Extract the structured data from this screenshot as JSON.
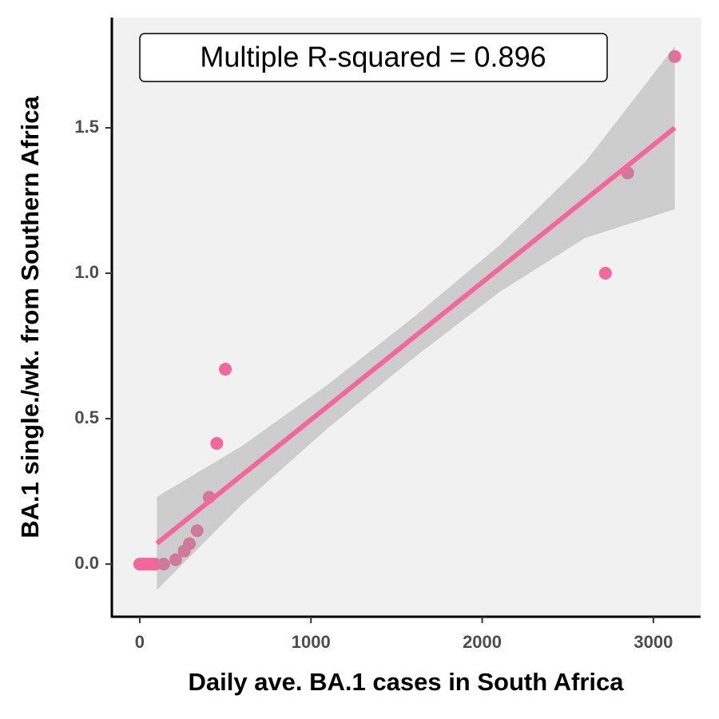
{
  "chart_data": {
    "type": "scatter",
    "x_label": "Daily ave. BA.1 cases in South Africa",
    "y_label": "BA.1 single./wk. from Southern Africa",
    "annotation": "Multiple R-squared = 0.896",
    "color": "#f4679d",
    "x": [
      0,
      15,
      30,
      50,
      70,
      90,
      140,
      210,
      260,
      290,
      335,
      405,
      450,
      500,
      2720,
      2850,
      3125
    ],
    "values": [
      0,
      0,
      0,
      0,
      0,
      0,
      0,
      0.015,
      0.045,
      0.07,
      0.115,
      0.23,
      0.415,
      0.67,
      1.0,
      1.345,
      1.745
    ],
    "fit": {
      "x": [
        100,
        3125
      ],
      "values": [
        0.071,
        1.5
      ]
    },
    "band": {
      "x": [
        100,
        600,
        1100,
        1600,
        2100,
        2600,
        3125
      ],
      "lower": [
        -0.089,
        0.207,
        0.468,
        0.709,
        0.935,
        1.121,
        1.22
      ],
      "upper": [
        0.231,
        0.407,
        0.618,
        0.849,
        1.095,
        1.381,
        1.78
      ]
    },
    "xlim": [
      -163,
      3276
    ],
    "ylim": [
      -0.181,
      1.879
    ],
    "xticks": [
      0,
      1000,
      2000,
      3000
    ],
    "yticks": [
      {
        "value": 0,
        "label": "0.0"
      },
      {
        "value": 0.5,
        "label": "0.5"
      },
      {
        "value": 1,
        "label": "1.0"
      },
      {
        "value": 1.5,
        "label": "1.5"
      }
    ]
  }
}
